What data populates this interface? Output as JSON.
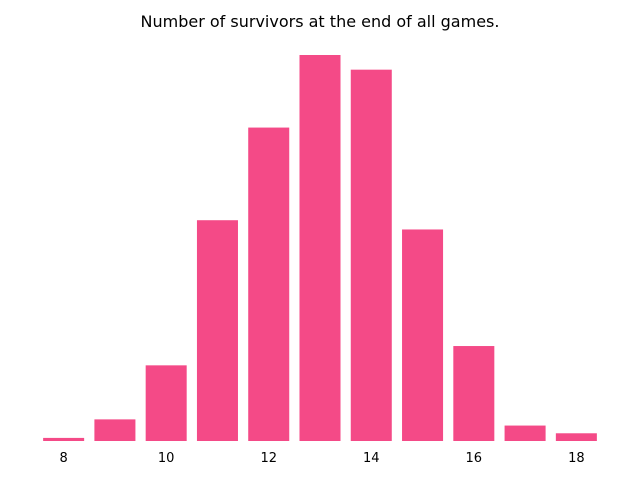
{
  "chart_data": {
    "type": "bar",
    "title": "Number of survivors at the end of all games.",
    "xlabel": "",
    "ylabel": "",
    "categories": [
      8,
      9,
      10,
      11,
      12,
      13,
      14,
      15,
      16,
      17,
      18
    ],
    "values": [
      4,
      28,
      98,
      286,
      406,
      500,
      481,
      274,
      123,
      20,
      10
    ],
    "x_ticks": [
      "8",
      "10",
      "12",
      "14",
      "16",
      "18"
    ],
    "x_tick_values": [
      8,
      10,
      12,
      14,
      16,
      18
    ],
    "ylim": [
      0,
      500
    ],
    "show_y_axis": false,
    "grid": false,
    "bar_color": "#f44a87"
  }
}
